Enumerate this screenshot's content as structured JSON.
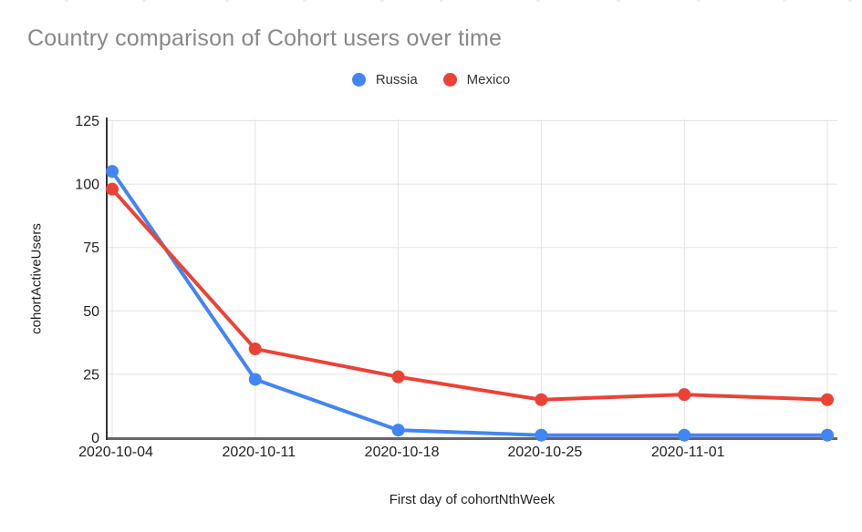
{
  "chart": {
    "title": "Country comparison of Cohort users over time"
  },
  "chart_data": {
    "type": "line",
    "title": "Country comparison of Cohort users over time",
    "xlabel": "First day of cohortNthWeek",
    "ylabel": "cohortActiveUsers",
    "categories": [
      "2020-10-04",
      "2020-10-11",
      "2020-10-18",
      "2020-10-25",
      "2020-11-01",
      ""
    ],
    "series": [
      {
        "name": "Russia",
        "color": "#4285F4",
        "values": [
          105,
          23,
          3,
          1,
          1,
          1
        ]
      },
      {
        "name": "Mexico",
        "color": "#EA4335",
        "values": [
          98,
          35,
          24,
          15,
          17,
          15
        ]
      }
    ],
    "y_ticks": [
      0,
      25,
      50,
      75,
      100,
      125
    ],
    "ylim": [
      0,
      125
    ],
    "grid": true,
    "legend_position": "top",
    "colors": {
      "grid": "#e3e3e3",
      "y_axis_line": "#333333",
      "x_axis_line": "#666666",
      "tick_text": "#222222",
      "title_text": "#888888"
    }
  }
}
